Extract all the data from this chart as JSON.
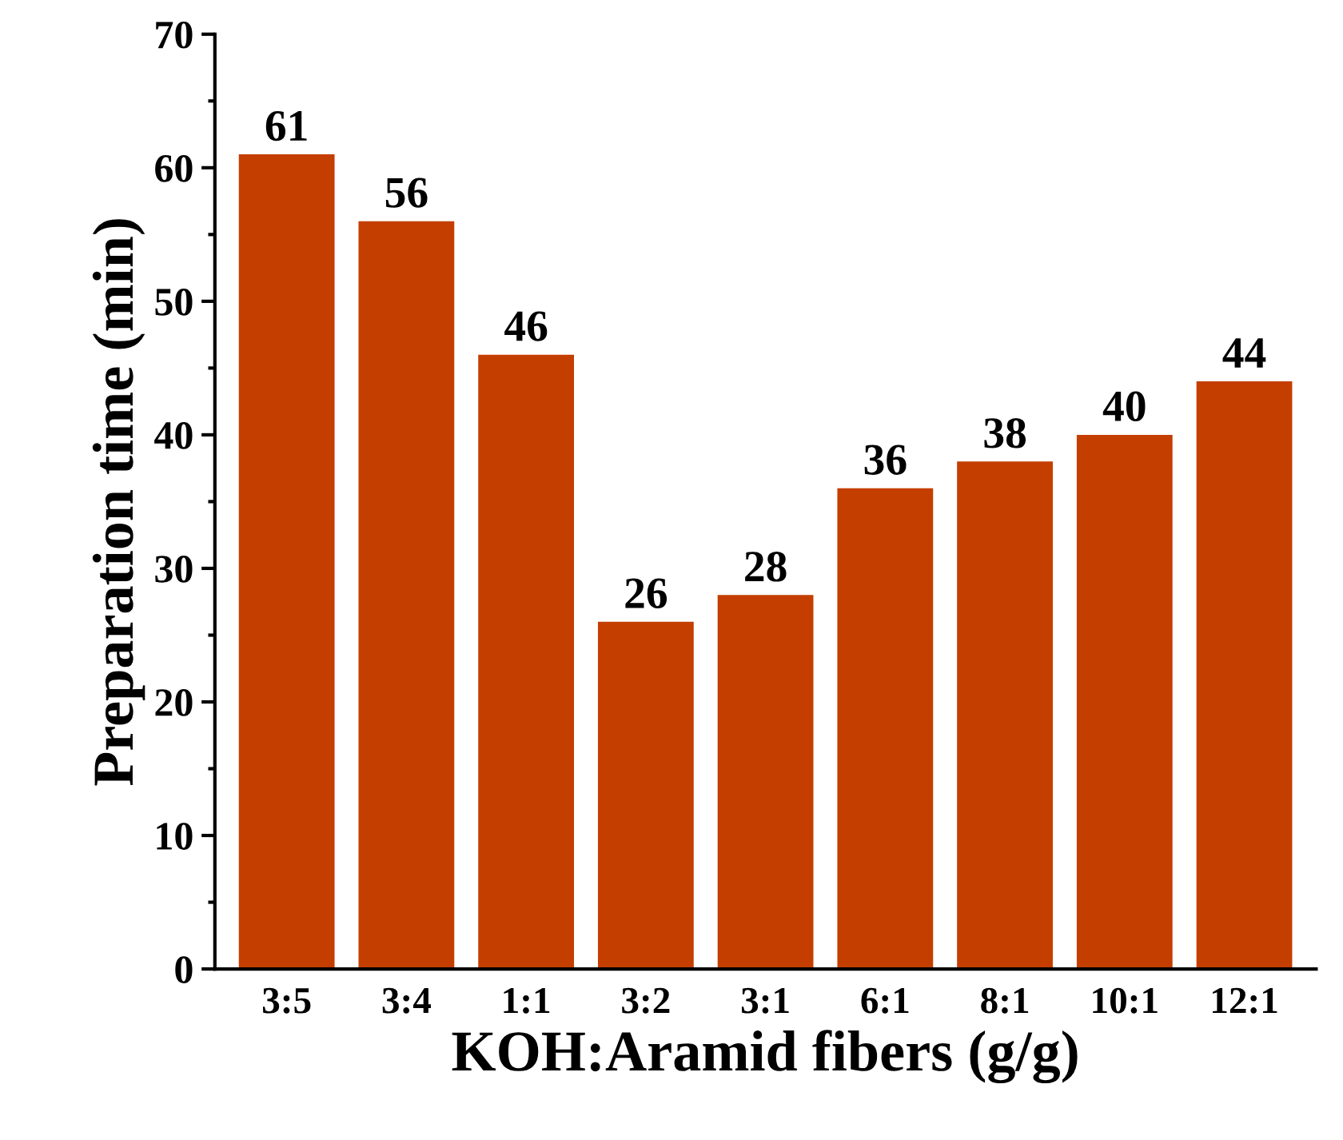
{
  "chart_data": {
    "type": "bar",
    "xlabel": "KOH:Aramid fibers (g/g)",
    "ylabel": "Preparation time (min)",
    "categories": [
      "3:5",
      "3:4",
      "1:1",
      "3:2",
      "3:1",
      "6:1",
      "8:1",
      "10:1",
      "12:1"
    ],
    "values": [
      61,
      56,
      46,
      26,
      28,
      36,
      38,
      40,
      44
    ],
    "color": "#c43e00",
    "ylim": [
      0,
      70
    ],
    "yticks": [
      0,
      10,
      20,
      30,
      40,
      50,
      60,
      70
    ],
    "data_labels": true,
    "grid": false
  }
}
